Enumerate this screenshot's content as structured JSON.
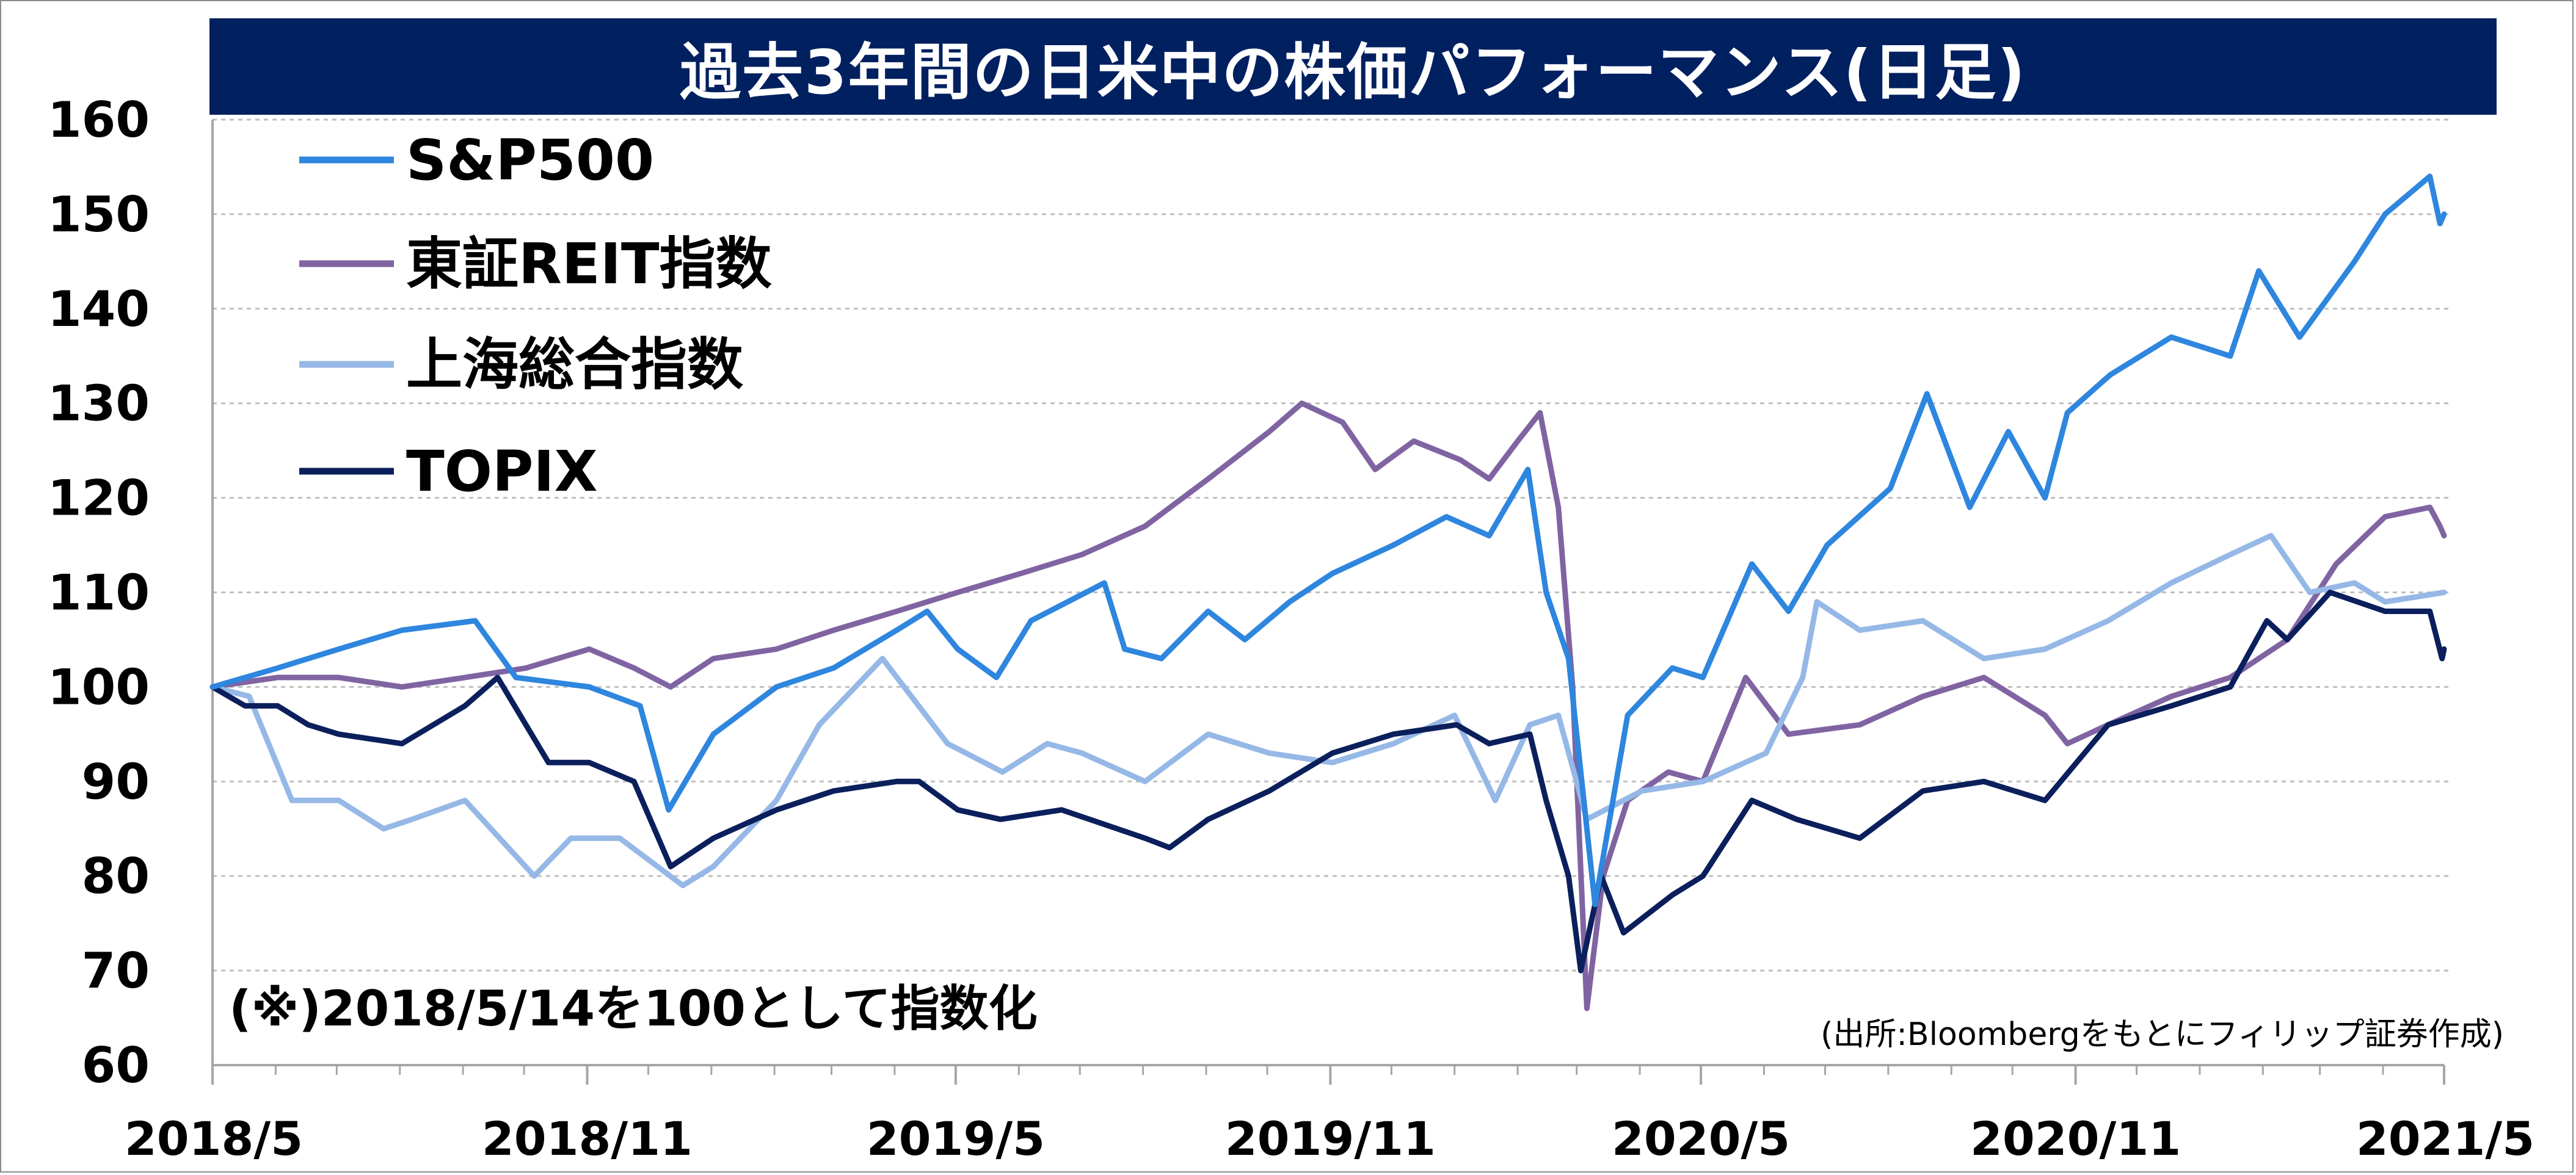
{
  "chart_data": {
    "type": "line",
    "title": "過去3年間の日米中の株価パフォーマンス(日足)",
    "note": "(※)2018/5/14を100として指数化",
    "source": "(出所:Bloombergをもとにフィリップ証券作成)",
    "ylim": [
      60,
      160
    ],
    "yticks": [
      "160",
      "150",
      "140",
      "130",
      "120",
      "110",
      "100",
      "90",
      "80",
      "70",
      "60"
    ],
    "x_tick_labels": [
      "2018/5",
      "2018/11",
      "2019/5",
      "2019/11",
      "2020/5",
      "2020/11",
      "2021/5"
    ],
    "x_range": [
      "2018-05-14",
      "2021-05-14"
    ],
    "grid": true,
    "legend_position": "top-left",
    "colors": {
      "sp500": "#2E86DE",
      "reit": "#8064A2",
      "shanghai": "#95B8E6",
      "topix": "#0B1F5C",
      "title_bg": "#002060",
      "grid": "#bfbfbf"
    },
    "series": [
      {
        "name": "S&P500",
        "color": "#2E86DE",
        "points": [
          [
            "2018-05-14",
            100
          ],
          [
            "2018-06-15",
            102
          ],
          [
            "2018-07-15",
            104
          ],
          [
            "2018-08-15",
            106
          ],
          [
            "2018-09-20",
            107
          ],
          [
            "2018-10-10",
            101
          ],
          [
            "2018-11-15",
            100
          ],
          [
            "2018-12-10",
            98
          ],
          [
            "2018-12-24",
            87
          ],
          [
            "2019-01-15",
            95
          ],
          [
            "2019-02-15",
            100
          ],
          [
            "2019-03-15",
            102
          ],
          [
            "2019-04-15",
            106
          ],
          [
            "2019-04-30",
            108
          ],
          [
            "2019-05-15",
            104
          ],
          [
            "2019-06-03",
            101
          ],
          [
            "2019-06-20",
            107
          ],
          [
            "2019-07-26",
            111
          ],
          [
            "2019-08-05",
            104
          ],
          [
            "2019-08-23",
            103
          ],
          [
            "2019-09-15",
            108
          ],
          [
            "2019-10-03",
            105
          ],
          [
            "2019-10-25",
            109
          ],
          [
            "2019-11-15",
            112
          ],
          [
            "2019-12-15",
            115
          ],
          [
            "2020-01-10",
            118
          ],
          [
            "2020-01-31",
            116
          ],
          [
            "2020-02-19",
            123
          ],
          [
            "2020-02-28",
            110
          ],
          [
            "2020-03-10",
            103
          ],
          [
            "2020-03-23",
            77
          ],
          [
            "2020-04-08",
            97
          ],
          [
            "2020-04-30",
            102
          ],
          [
            "2020-05-15",
            101
          ],
          [
            "2020-06-08",
            113
          ],
          [
            "2020-06-26",
            108
          ],
          [
            "2020-07-15",
            115
          ],
          [
            "2020-08-15",
            121
          ],
          [
            "2020-09-02",
            131
          ],
          [
            "2020-09-23",
            119
          ],
          [
            "2020-10-12",
            127
          ],
          [
            "2020-10-30",
            120
          ],
          [
            "2020-11-10",
            129
          ],
          [
            "2020-12-01",
            133
          ],
          [
            "2020-12-31",
            137
          ],
          [
            "2021-01-29",
            135
          ],
          [
            "2021-02-12",
            144
          ],
          [
            "2021-03-04",
            137
          ],
          [
            "2021-03-31",
            145
          ],
          [
            "2021-04-15",
            150
          ],
          [
            "2021-05-07",
            154
          ],
          [
            "2021-05-12",
            149
          ],
          [
            "2021-05-14",
            150
          ]
        ]
      },
      {
        "name": "東証REIT指数",
        "color": "#8064A2",
        "points": [
          [
            "2018-05-14",
            100
          ],
          [
            "2018-06-15",
            101
          ],
          [
            "2018-07-15",
            101
          ],
          [
            "2018-08-15",
            100
          ],
          [
            "2018-09-15",
            101
          ],
          [
            "2018-10-15",
            102
          ],
          [
            "2018-11-15",
            104
          ],
          [
            "2018-12-07",
            102
          ],
          [
            "2018-12-25",
            100
          ],
          [
            "2019-01-15",
            103
          ],
          [
            "2019-02-15",
            104
          ],
          [
            "2019-03-15",
            106
          ],
          [
            "2019-04-15",
            108
          ],
          [
            "2019-05-15",
            110
          ],
          [
            "2019-06-15",
            112
          ],
          [
            "2019-07-15",
            114
          ],
          [
            "2019-08-15",
            117
          ],
          [
            "2019-09-15",
            122
          ],
          [
            "2019-10-15",
            127
          ],
          [
            "2019-10-31",
            130
          ],
          [
            "2019-11-20",
            128
          ],
          [
            "2019-12-06",
            123
          ],
          [
            "2019-12-25",
            126
          ],
          [
            "2020-01-17",
            124
          ],
          [
            "2020-01-31",
            122
          ],
          [
            "2020-02-14",
            126
          ],
          [
            "2020-02-25",
            129
          ],
          [
            "2020-03-05",
            119
          ],
          [
            "2020-03-12",
            100
          ],
          [
            "2020-03-19",
            66
          ],
          [
            "2020-03-27",
            80
          ],
          [
            "2020-04-08",
            88
          ],
          [
            "2020-04-28",
            91
          ],
          [
            "2020-05-15",
            90
          ],
          [
            "2020-06-05",
            101
          ],
          [
            "2020-06-26",
            95
          ],
          [
            "2020-07-31",
            96
          ],
          [
            "2020-08-31",
            99
          ],
          [
            "2020-09-30",
            101
          ],
          [
            "2020-10-30",
            97
          ],
          [
            "2020-11-10",
            94
          ],
          [
            "2020-11-30",
            96
          ],
          [
            "2020-12-31",
            99
          ],
          [
            "2021-01-29",
            101
          ],
          [
            "2021-02-26",
            105
          ],
          [
            "2021-03-22",
            113
          ],
          [
            "2021-04-15",
            118
          ],
          [
            "2021-05-07",
            119
          ],
          [
            "2021-05-12",
            117
          ],
          [
            "2021-05-14",
            116
          ]
        ]
      },
      {
        "name": "上海総合指数",
        "color": "#95B8E6",
        "points": [
          [
            "2018-05-14",
            100
          ],
          [
            "2018-06-01",
            99
          ],
          [
            "2018-06-22",
            88
          ],
          [
            "2018-07-15",
            88
          ],
          [
            "2018-08-06",
            85
          ],
          [
            "2018-08-20",
            86
          ],
          [
            "2018-09-15",
            88
          ],
          [
            "2018-10-19",
            80
          ],
          [
            "2018-11-06",
            84
          ],
          [
            "2018-11-30",
            84
          ],
          [
            "2018-12-31",
            79
          ],
          [
            "2019-01-15",
            81
          ],
          [
            "2019-02-15",
            88
          ],
          [
            "2019-03-08",
            96
          ],
          [
            "2019-04-08",
            103
          ],
          [
            "2019-05-10",
            94
          ],
          [
            "2019-06-06",
            91
          ],
          [
            "2019-06-28",
            94
          ],
          [
            "2019-07-15",
            93
          ],
          [
            "2019-08-15",
            90
          ],
          [
            "2019-09-15",
            95
          ],
          [
            "2019-10-15",
            93
          ],
          [
            "2019-11-15",
            92
          ],
          [
            "2019-12-15",
            94
          ],
          [
            "2020-01-14",
            97
          ],
          [
            "2020-02-03",
            88
          ],
          [
            "2020-02-20",
            96
          ],
          [
            "2020-03-05",
            97
          ],
          [
            "2020-03-19",
            86
          ],
          [
            "2020-04-15",
            89
          ],
          [
            "2020-05-15",
            90
          ],
          [
            "2020-06-15",
            93
          ],
          [
            "2020-07-03",
            101
          ],
          [
            "2020-07-10",
            109
          ],
          [
            "2020-07-31",
            106
          ],
          [
            "2020-08-31",
            107
          ],
          [
            "2020-09-30",
            103
          ],
          [
            "2020-10-30",
            104
          ],
          [
            "2020-11-30",
            107
          ],
          [
            "2020-12-31",
            111
          ],
          [
            "2021-01-29",
            114
          ],
          [
            "2021-02-18",
            116
          ],
          [
            "2021-03-09",
            110
          ],
          [
            "2021-03-31",
            111
          ],
          [
            "2021-04-15",
            109
          ],
          [
            "2021-05-14",
            110
          ]
        ]
      },
      {
        "name": "TOPIX",
        "color": "#0B1F5C",
        "points": [
          [
            "2018-05-14",
            100
          ],
          [
            "2018-05-30",
            98
          ],
          [
            "2018-06-15",
            98
          ],
          [
            "2018-06-30",
            96
          ],
          [
            "2018-07-15",
            95
          ],
          [
            "2018-08-15",
            94
          ],
          [
            "2018-09-15",
            98
          ],
          [
            "2018-10-01",
            101
          ],
          [
            "2018-10-26",
            92
          ],
          [
            "2018-11-15",
            92
          ],
          [
            "2018-12-07",
            90
          ],
          [
            "2018-12-25",
            81
          ],
          [
            "2019-01-15",
            84
          ],
          [
            "2019-02-15",
            87
          ],
          [
            "2019-03-15",
            89
          ],
          [
            "2019-04-15",
            90
          ],
          [
            "2019-04-26",
            90
          ],
          [
            "2019-05-15",
            87
          ],
          [
            "2019-06-05",
            86
          ],
          [
            "2019-07-05",
            87
          ],
          [
            "2019-08-15",
            84
          ],
          [
            "2019-08-27",
            83
          ],
          [
            "2019-09-15",
            86
          ],
          [
            "2019-10-15",
            89
          ],
          [
            "2019-11-15",
            93
          ],
          [
            "2019-12-15",
            95
          ],
          [
            "2020-01-15",
            96
          ],
          [
            "2020-01-31",
            94
          ],
          [
            "2020-02-20",
            95
          ],
          [
            "2020-02-28",
            88
          ],
          [
            "2020-03-10",
            80
          ],
          [
            "2020-03-16",
            70
          ],
          [
            "2020-03-26",
            80
          ],
          [
            "2020-04-06",
            74
          ],
          [
            "2020-04-30",
            78
          ],
          [
            "2020-05-15",
            80
          ],
          [
            "2020-06-08",
            88
          ],
          [
            "2020-06-30",
            86
          ],
          [
            "2020-07-31",
            84
          ],
          [
            "2020-08-31",
            89
          ],
          [
            "2020-09-30",
            90
          ],
          [
            "2020-10-30",
            88
          ],
          [
            "2020-11-30",
            96
          ],
          [
            "2020-12-31",
            98
          ],
          [
            "2021-01-29",
            100
          ],
          [
            "2021-02-16",
            107
          ],
          [
            "2021-02-26",
            105
          ],
          [
            "2021-03-19",
            110
          ],
          [
            "2021-04-15",
            108
          ],
          [
            "2021-05-07",
            108
          ],
          [
            "2021-05-13",
            103
          ],
          [
            "2021-05-14",
            104
          ]
        ]
      }
    ]
  }
}
